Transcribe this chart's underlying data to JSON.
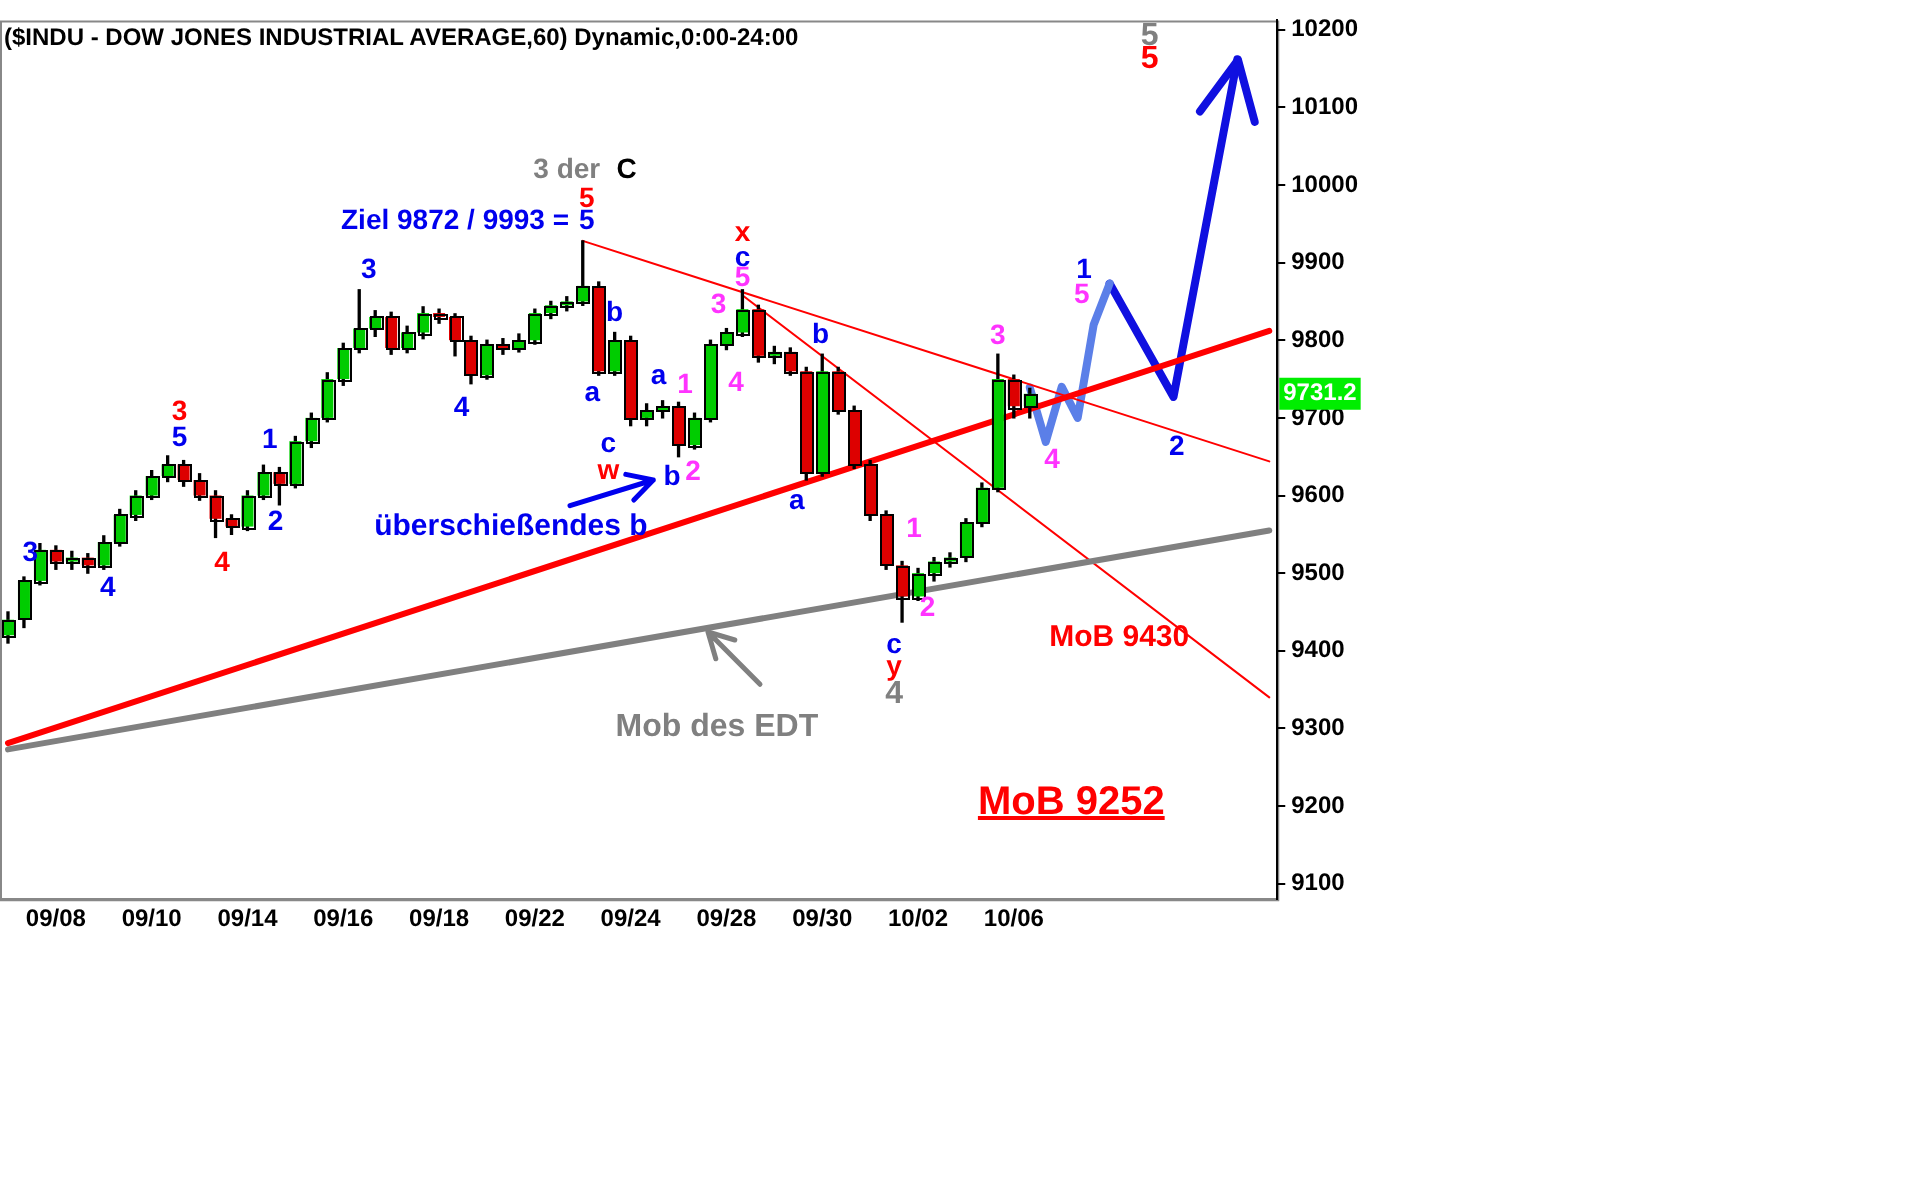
{
  "chart_data": {
    "type": "candlestick",
    "title": "($INDU - DOW JONES INDUSTRIAL AVERAGE,60) Dynamic,0:00-24:00",
    "categories": [
      null,
      null,
      null,
      "09/08",
      null,
      null,
      null,
      null,
      null,
      "09/10",
      null,
      null,
      null,
      null,
      null,
      "09/14",
      null,
      null,
      null,
      null,
      null,
      "09/16",
      null,
      null,
      null,
      null,
      null,
      "09/18",
      null,
      null,
      null,
      null,
      null,
      "09/22",
      null,
      null,
      null,
      null,
      null,
      "09/24",
      null,
      null,
      null,
      null,
      null,
      "09/28",
      null,
      null,
      null,
      null,
      null,
      "09/30",
      null,
      null,
      null,
      null,
      null,
      "10/02",
      null,
      null,
      null,
      null,
      null,
      "10/06",
      null,
      null,
      null,
      null,
      null,
      null,
      null,
      null,
      null,
      null,
      null,
      null,
      null,
      null,
      null,
      null
    ],
    "ohlc": [
      [
        9420,
        9450,
        9410,
        9440
      ],
      [
        9440,
        9495,
        9430,
        9490
      ],
      [
        9490,
        9538,
        9485,
        9530
      ],
      [
        9530,
        9535,
        9505,
        9515
      ],
      [
        9515,
        9528,
        9505,
        9520
      ],
      [
        9520,
        9525,
        9500,
        9510
      ],
      [
        9510,
        9548,
        9505,
        9540
      ],
      [
        9540,
        9582,
        9535,
        9575
      ],
      [
        9575,
        9606,
        9568,
        9600
      ],
      [
        9600,
        9632,
        9595,
        9625
      ],
      [
        9625,
        9651,
        9618,
        9640
      ],
      [
        9640,
        9645,
        9612,
        9620
      ],
      [
        9620,
        9628,
        9594,
        9600
      ],
      [
        9600,
        9606,
        9546,
        9570
      ],
      [
        9570,
        9575,
        9550,
        9560
      ],
      [
        9560,
        9606,
        9555,
        9600
      ],
      [
        9600,
        9639,
        9595,
        9630
      ],
      [
        9630,
        9636,
        9588,
        9615
      ],
      [
        9615,
        9676,
        9610,
        9670
      ],
      [
        9670,
        9706,
        9662,
        9700
      ],
      [
        9700,
        9758,
        9695,
        9750
      ],
      [
        9750,
        9796,
        9742,
        9790
      ],
      [
        9790,
        9865,
        9784,
        9815
      ],
      [
        9815,
        9838,
        9805,
        9830
      ],
      [
        9830,
        9836,
        9782,
        9790
      ],
      [
        9790,
        9818,
        9784,
        9810
      ],
      [
        9810,
        9843,
        9802,
        9835
      ],
      [
        9835,
        9840,
        9822,
        9830
      ],
      [
        9830,
        9834,
        9780,
        9800
      ],
      [
        9800,
        9805,
        9744,
        9755
      ],
      [
        9755,
        9800,
        9750,
        9795
      ],
      [
        9795,
        9802,
        9782,
        9790
      ],
      [
        9790,
        9808,
        9785,
        9800
      ],
      [
        9800,
        9840,
        9795,
        9835
      ],
      [
        9835,
        9850,
        9828,
        9845
      ],
      [
        9845,
        9856,
        9838,
        9850
      ],
      [
        9850,
        9928,
        9845,
        9870
      ],
      [
        9870,
        9875,
        9755,
        9760
      ],
      [
        9760,
        9810,
        9755,
        9800
      ],
      [
        9800,
        9805,
        9690,
        9700
      ],
      [
        9700,
        9718,
        9690,
        9710
      ],
      [
        9710,
        9722,
        9700,
        9715
      ],
      [
        9715,
        9720,
        9650,
        9665
      ],
      [
        9665,
        9706,
        9660,
        9700
      ],
      [
        9700,
        9800,
        9695,
        9795
      ],
      [
        9795,
        9815,
        9788,
        9810
      ],
      [
        9810,
        9865,
        9805,
        9840
      ],
      [
        9840,
        9845,
        9772,
        9780
      ],
      [
        9780,
        9792,
        9770,
        9785
      ],
      [
        9785,
        9790,
        9755,
        9760
      ],
      [
        9760,
        9765,
        9620,
        9630
      ],
      [
        9630,
        9782,
        9625,
        9760
      ],
      [
        9760,
        9765,
        9705,
        9710
      ],
      [
        9710,
        9715,
        9635,
        9640
      ],
      [
        9640,
        9645,
        9568,
        9575
      ],
      [
        9575,
        9580,
        9505,
        9510
      ],
      [
        9510,
        9515,
        9437,
        9470
      ],
      [
        9470,
        9506,
        9465,
        9500
      ],
      [
        9500,
        9520,
        9490,
        9515
      ],
      [
        9515,
        9526,
        9508,
        9520
      ],
      [
        9520,
        9570,
        9515,
        9565
      ],
      [
        9565,
        9616,
        9560,
        9610
      ],
      [
        9610,
        9782,
        9605,
        9750
      ],
      [
        9750,
        9755,
        9700,
        9715
      ],
      [
        9715,
        9738,
        9700,
        9731
      ],
      null,
      null,
      null,
      null,
      null,
      null,
      null,
      null,
      null,
      null,
      null,
      null,
      null,
      null,
      null
    ],
    "series": [
      {
        "type": "line",
        "color": "#ff0000",
        "values": [
          9281,
          null,
          null,
          null,
          null,
          null,
          null,
          null,
          null,
          null,
          null,
          null,
          null,
          null,
          null,
          null,
          null,
          null,
          null,
          null,
          null,
          null,
          null,
          null,
          null,
          null,
          null,
          null,
          null,
          null,
          null,
          null,
          null,
          null,
          null,
          null,
          null,
          null,
          null,
          null,
          null,
          null,
          null,
          null,
          null,
          null,
          null,
          null,
          null,
          null,
          null,
          null,
          null,
          null,
          null,
          null,
          null,
          null,
          null,
          null,
          null,
          null,
          null,
          null,
          null,
          null,
          null,
          null,
          null,
          null,
          null,
          null,
          null,
          null,
          null,
          null,
          null,
          null,
          null,
          9812
        ]
      },
      {
        "type": "line",
        "color": "#808080",
        "values": [
          9273,
          null,
          null,
          null,
          null,
          null,
          null,
          null,
          null,
          null,
          null,
          null,
          null,
          null,
          null,
          null,
          null,
          null,
          null,
          null,
          null,
          null,
          null,
          null,
          null,
          null,
          null,
          null,
          null,
          null,
          null,
          null,
          null,
          null,
          null,
          null,
          null,
          null,
          null,
          null,
          null,
          null,
          null,
          null,
          null,
          null,
          null,
          null,
          null,
          null,
          null,
          null,
          null,
          null,
          null,
          null,
          null,
          null,
          null,
          null,
          null,
          null,
          null,
          null,
          null,
          null,
          null,
          null,
          null,
          null,
          null,
          null,
          null,
          null,
          null,
          null,
          null,
          null,
          null,
          9555
        ]
      },
      {
        "type": "line",
        "color": "#ff0000",
        "values": [
          null,
          null,
          null,
          null,
          null,
          null,
          null,
          null,
          null,
          null,
          null,
          null,
          null,
          null,
          null,
          null,
          null,
          null,
          null,
          null,
          null,
          null,
          null,
          null,
          null,
          null,
          null,
          null,
          null,
          null,
          null,
          null,
          null,
          null,
          null,
          null,
          9928,
          null,
          null,
          null,
          null,
          null,
          null,
          null,
          null,
          null,
          null,
          null,
          null,
          null,
          null,
          null,
          null,
          null,
          null,
          null,
          null,
          null,
          null,
          null,
          null,
          null,
          null,
          null,
          null,
          null,
          null,
          null,
          null,
          null,
          null,
          null,
          null,
          null,
          null,
          null,
          null,
          null,
          null,
          9644
        ]
      },
      {
        "type": "line",
        "color": "#ff0000",
        "values": [
          null,
          null,
          null,
          null,
          null,
          null,
          null,
          null,
          null,
          null,
          null,
          null,
          null,
          null,
          null,
          null,
          null,
          null,
          null,
          null,
          null,
          null,
          null,
          null,
          null,
          null,
          null,
          null,
          null,
          null,
          null,
          null,
          null,
          null,
          null,
          null,
          null,
          null,
          null,
          null,
          null,
          null,
          null,
          null,
          null,
          null,
          9858,
          null,
          null,
          null,
          null,
          null,
          null,
          null,
          null,
          null,
          null,
          null,
          null,
          null,
          null,
          null,
          null,
          null,
          null,
          null,
          null,
          null,
          null,
          null,
          null,
          null,
          null,
          null,
          null,
          null,
          null,
          null,
          null,
          9340
        ]
      },
      {
        "type": "line",
        "color": "#5b7fe8",
        "values": [
          null,
          null,
          null,
          null,
          null,
          null,
          null,
          null,
          null,
          null,
          null,
          null,
          null,
          null,
          null,
          null,
          null,
          null,
          null,
          null,
          null,
          null,
          null,
          null,
          null,
          null,
          null,
          null,
          null,
          null,
          null,
          null,
          null,
          null,
          null,
          null,
          null,
          null,
          null,
          null,
          null,
          null,
          null,
          null,
          null,
          null,
          null,
          null,
          null,
          null,
          null,
          null,
          null,
          null,
          null,
          null,
          null,
          null,
          null,
          null,
          null,
          null,
          null,
          null,
          9739,
          9669,
          9740,
          9700,
          9820,
          9873,
          null,
          null,
          null,
          null,
          null,
          null,
          null,
          null,
          null,
          null
        ]
      },
      {
        "type": "line",
        "color": "#1010e0",
        "values": [
          null,
          null,
          null,
          null,
          null,
          null,
          null,
          null,
          null,
          null,
          null,
          null,
          null,
          null,
          null,
          null,
          null,
          null,
          null,
          null,
          null,
          null,
          null,
          null,
          null,
          null,
          null,
          null,
          null,
          null,
          null,
          null,
          null,
          null,
          null,
          null,
          null,
          null,
          null,
          null,
          null,
          null,
          null,
          null,
          null,
          null,
          null,
          null,
          null,
          null,
          null,
          null,
          null,
          null,
          null,
          null,
          null,
          null,
          null,
          null,
          null,
          null,
          null,
          null,
          null,
          null,
          null,
          null,
          null,
          9873,
          null,
          null,
          null,
          9727,
          null,
          null,
          null,
          10162,
          null,
          null
        ]
      }
    ],
    "ylim": [
      9080,
      10212
    ],
    "yticks": [
      9100,
      9200,
      9300,
      9400,
      9500,
      9600,
      9700,
      9800,
      9900,
      10000,
      10100,
      10200
    ],
    "annotations": [
      "3",
      "4",
      "5",
      "3",
      "4",
      "1",
      "2",
      "3",
      "4",
      "3 der",
      "C",
      "5",
      "Ziel 9872 / 9993 =",
      "5",
      "b",
      "a",
      "c",
      "w",
      "a",
      "1",
      "2",
      "b",
      "überschießendes b",
      "x",
      "c",
      "5",
      "3",
      "4",
      "b",
      "a",
      "1",
      "2",
      "c",
      "y",
      "4",
      "3",
      "4",
      "1",
      "5",
      "2",
      "5",
      "5",
      "MoB 9430",
      "MoB 9252",
      {
        "text": "Mob des EDT",
        "y": 9425
      },
      {
        "text": "9731.2",
        "y": 9731.2
      }
    ]
  }
}
